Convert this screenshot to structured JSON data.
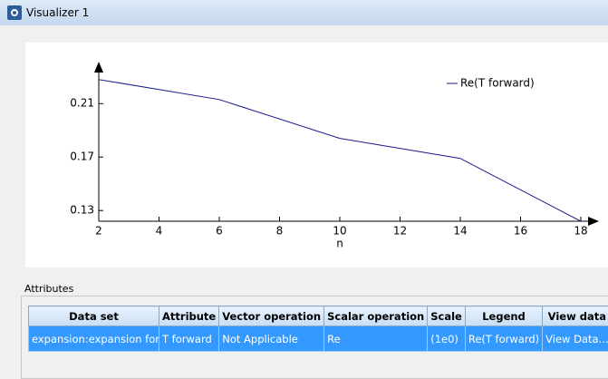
{
  "window": {
    "title": "Visualizer 1"
  },
  "chart_data": {
    "type": "line",
    "x": [
      2,
      6,
      10,
      14,
      18
    ],
    "series": [
      {
        "name": "Re(T forward)",
        "color": "#1a1a8c",
        "values": [
          0.228,
          0.213,
          0.184,
          0.169,
          0.122
        ]
      }
    ],
    "xlim": [
      2,
      18
    ],
    "xticks": [
      2,
      4,
      6,
      8,
      10,
      12,
      14,
      16,
      18
    ],
    "ylim": [
      0.122,
      0.24
    ],
    "yticks": [
      0.13,
      0.17,
      0.21
    ],
    "x_label": "n",
    "legend": "upper right"
  },
  "attributes": {
    "title": "Attributes",
    "columns": [
      "Data set",
      "Attribute",
      "Vector operation",
      "Scalar operation",
      "Scale",
      "Legend",
      "View data"
    ],
    "rows": [
      [
        "expansion:expansion for T",
        "T forward",
        "Not Applicable",
        "Re",
        "(1e0)",
        "Re(T forward)",
        "View Data..."
      ]
    ]
  }
}
